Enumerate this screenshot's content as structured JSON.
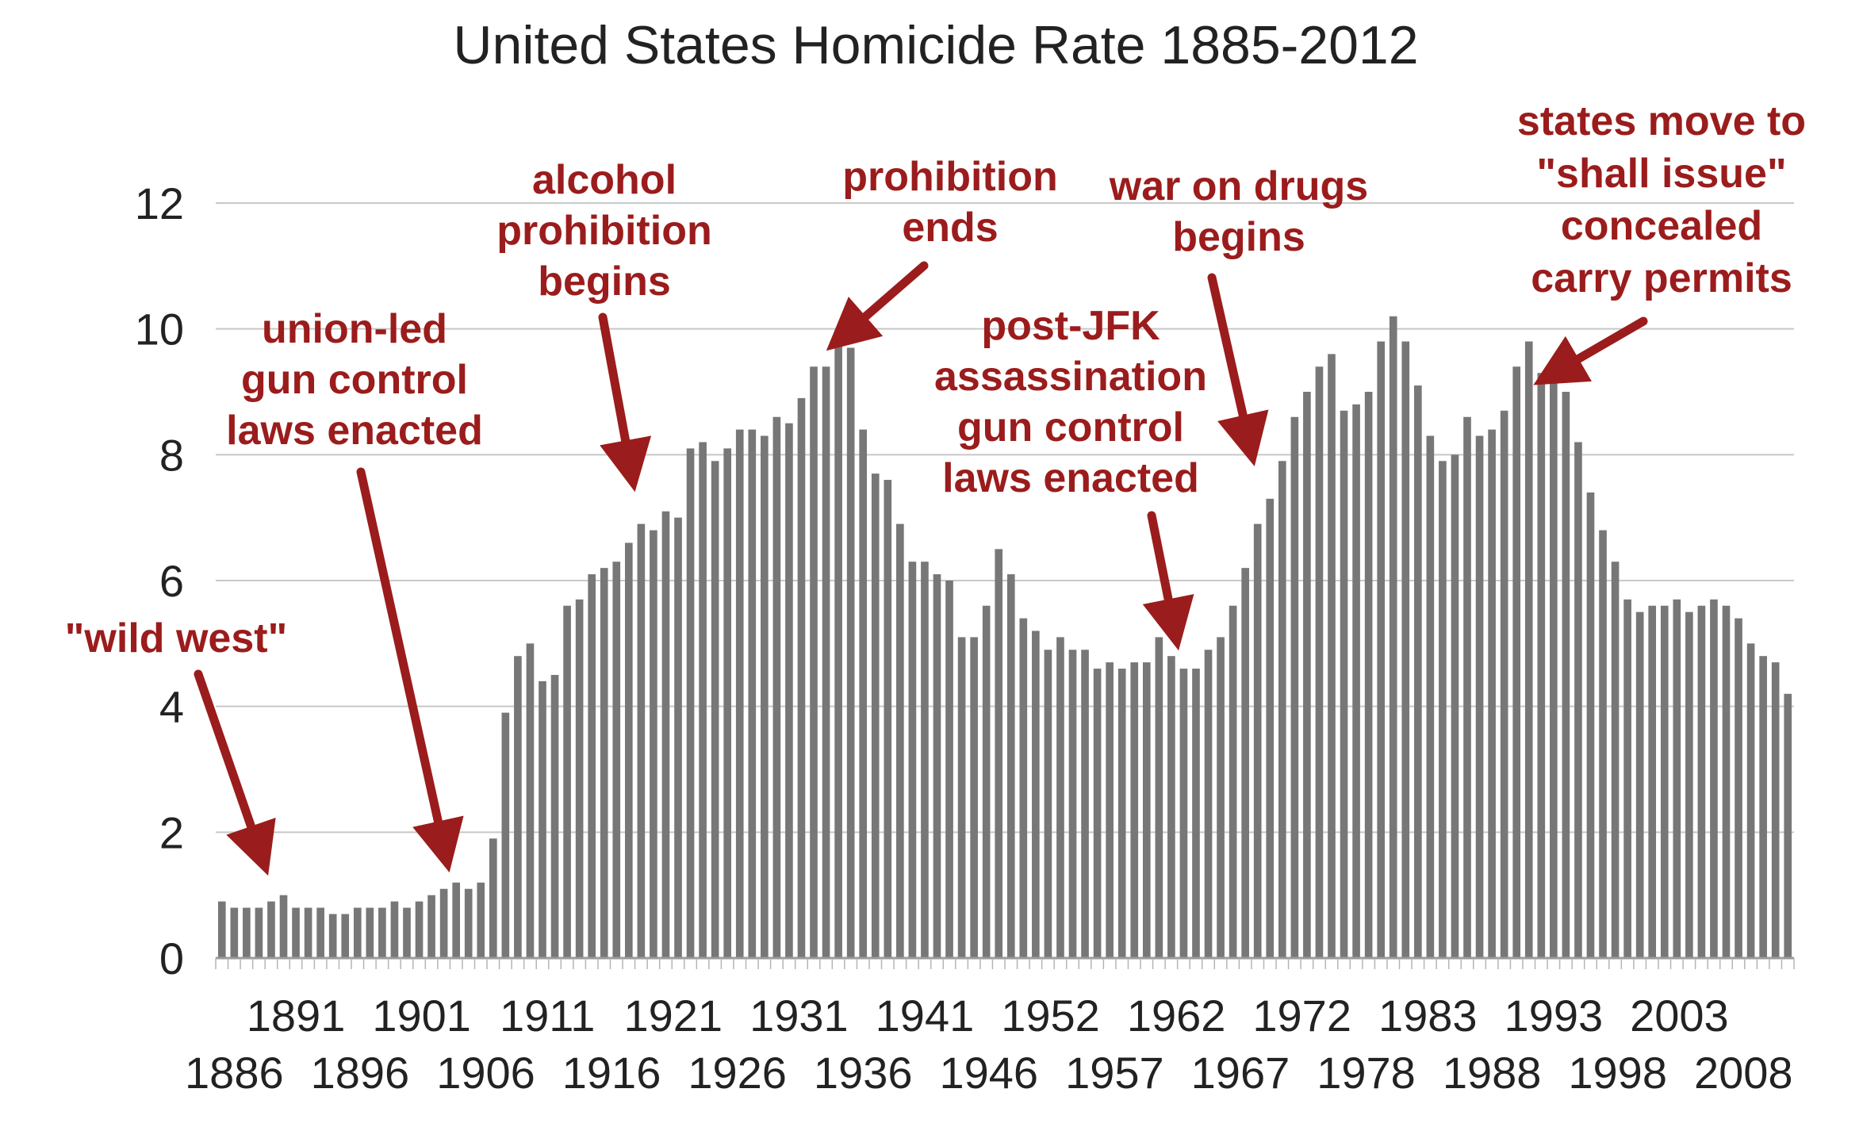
{
  "chart_data": {
    "type": "bar",
    "title": "United States Homicide Rate 1885-2012",
    "xlabel": "",
    "ylabel": "",
    "ylim": [
      0,
      12
    ],
    "yticks": [
      0,
      2,
      4,
      6,
      8,
      10,
      12
    ],
    "grid": true,
    "legend": "none",
    "colors": {
      "bar": "#777777",
      "annotation": "#9b1c1c",
      "text": "#222222",
      "grid": "#c8c8c8"
    },
    "xtick_labels_upper": [
      "1891",
      "1901",
      "1911",
      "1921",
      "1931",
      "1941",
      "1952",
      "1962",
      "1972",
      "1983",
      "1993",
      "2003"
    ],
    "xtick_labels_lower": [
      "1886",
      "1896",
      "1906",
      "1916",
      "1926",
      "1936",
      "1946",
      "1957",
      "1967",
      "1978",
      "1988",
      "1998",
      "2008"
    ],
    "values": [
      0.9,
      0.8,
      0.8,
      0.8,
      0.9,
      1.0,
      0.8,
      0.8,
      0.8,
      0.7,
      0.7,
      0.8,
      0.8,
      0.8,
      0.9,
      0.8,
      0.9,
      1.0,
      1.1,
      1.2,
      1.1,
      1.2,
      1.9,
      3.9,
      4.8,
      5.0,
      4.4,
      4.5,
      5.6,
      5.7,
      6.1,
      6.2,
      6.3,
      6.6,
      6.9,
      6.8,
      7.1,
      7.0,
      8.1,
      8.2,
      7.9,
      8.1,
      8.4,
      8.4,
      8.3,
      8.6,
      8.5,
      8.9,
      9.4,
      9.4,
      9.8,
      9.7,
      8.4,
      7.7,
      7.6,
      6.9,
      6.3,
      6.3,
      6.1,
      6.0,
      5.1,
      5.1,
      5.6,
      6.5,
      6.1,
      5.4,
      5.2,
      4.9,
      5.1,
      4.9,
      4.9,
      4.6,
      4.7,
      4.6,
      4.7,
      4.7,
      5.1,
      4.8,
      4.6,
      4.6,
      4.9,
      5.1,
      5.6,
      6.2,
      6.9,
      7.3,
      7.9,
      8.6,
      9.0,
      9.4,
      9.6,
      8.7,
      8.8,
      9.0,
      9.8,
      10.2,
      9.8,
      9.1,
      8.3,
      7.9,
      8.0,
      8.6,
      8.3,
      8.4,
      8.7,
      9.4,
      9.8,
      9.3,
      9.5,
      9.0,
      8.2,
      7.4,
      6.8,
      6.3,
      5.7,
      5.5,
      5.6,
      5.6,
      5.7,
      5.5,
      5.6,
      5.7,
      5.6,
      5.4,
      5.0,
      4.8,
      4.7,
      4.2
    ],
    "annotations": [
      {
        "id": "wild-west",
        "lines": [
          "\"wild west\""
        ]
      },
      {
        "id": "union-led",
        "lines": [
          "union-led",
          "gun control",
          "laws enacted"
        ]
      },
      {
        "id": "alcohol",
        "lines": [
          "alcohol",
          "prohibition",
          "begins"
        ]
      },
      {
        "id": "prohibition-ends",
        "lines": [
          "prohibition",
          "ends"
        ]
      },
      {
        "id": "post-jfk",
        "lines": [
          "post-JFK",
          "assassination",
          "gun control",
          "laws enacted"
        ]
      },
      {
        "id": "war-on-drugs",
        "lines": [
          "war on drugs",
          "begins"
        ]
      },
      {
        "id": "shall-issue",
        "lines": [
          "states move to",
          "\"shall issue\"",
          "concealed",
          "carry permits"
        ]
      }
    ]
  }
}
